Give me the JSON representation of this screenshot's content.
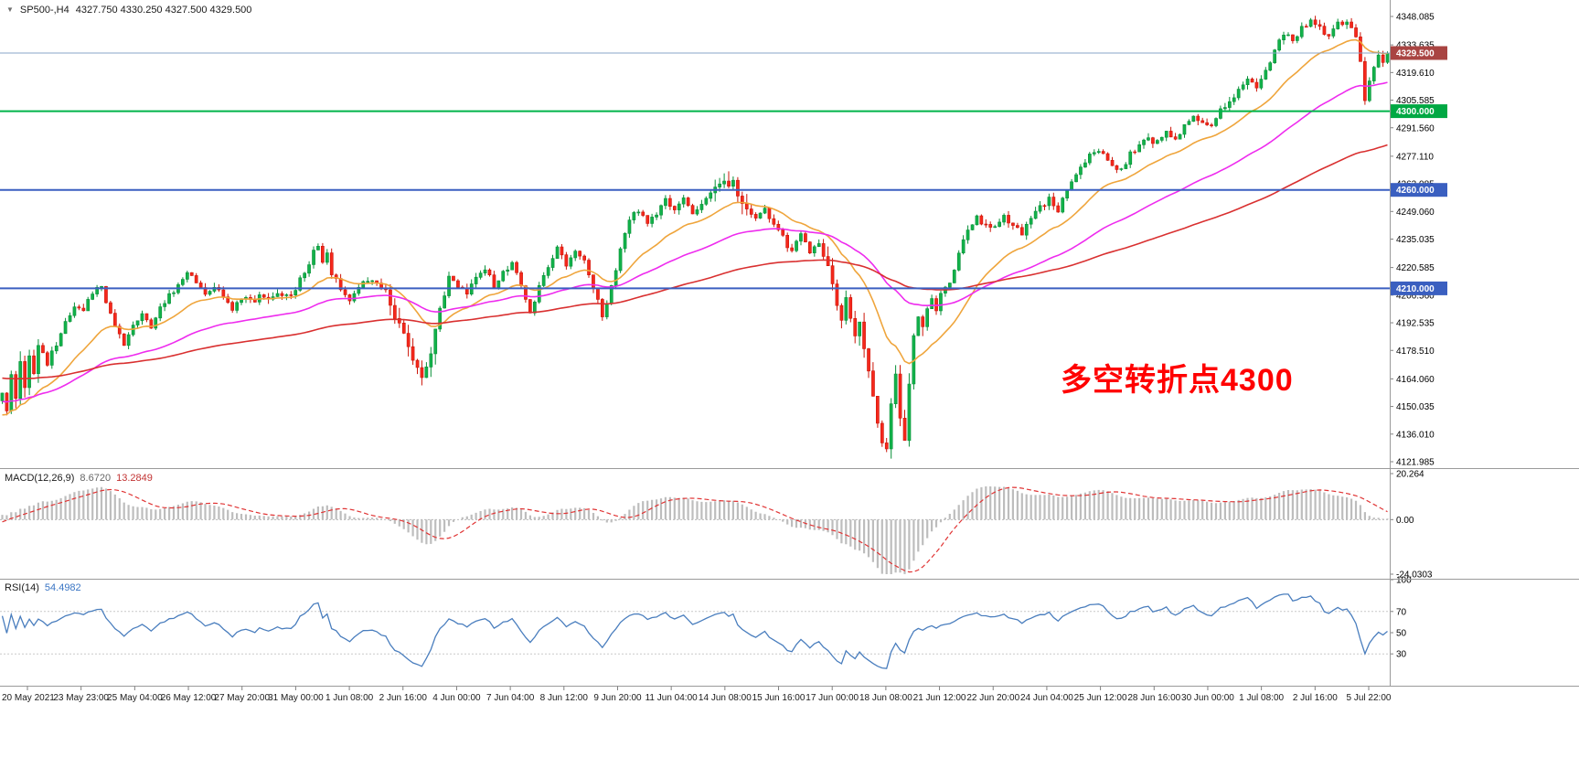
{
  "header": {
    "symbol_label": "SP500-,H4",
    "ohlc_text": "4327.750 4330.250 4327.500 4329.500"
  },
  "icons": {
    "symbol_dropdown": "▼"
  },
  "macd_panel": {
    "label": "MACD(12,26,9)",
    "value_main": "8.6720",
    "value_signal": "13.2849"
  },
  "rsi_panel": {
    "label": "RSI(14)",
    "value": "54.4982"
  },
  "annotation": {
    "text": "多空转折点4300",
    "color": "#FF0000"
  },
  "colors": {
    "background": "#FFFFFF",
    "bull_fill": "#12B24A",
    "bull_stroke": "#089038",
    "bear_fill": "#F5281C",
    "bear_stroke": "#CC1408",
    "macd_histogram": "#BDBDBD",
    "macd_signal": "#E03434",
    "rsi_line": "#4A7EBE",
    "panel_border": "#9A9A9A",
    "axis_text": "#000000"
  },
  "chart_data": {
    "type": "candlestick",
    "symbol": "SP500-",
    "timeframe": "H4",
    "bars": 308,
    "current_ohlc": {
      "open": 4327.75,
      "high": 4330.25,
      "low": 4327.5,
      "close": 4329.5
    },
    "price_axis": {
      "top_price": 4348.085,
      "bottom_price": 4121.985,
      "tick_labels": [
        "4348.085",
        "4333.635",
        "4319.610",
        "4305.585",
        "4291.560",
        "4277.110",
        "4263.085",
        "4249.060",
        "4235.035",
        "4220.585",
        "4206.560",
        "4192.535",
        "4178.510",
        "4164.060",
        "4150.035",
        "4136.010",
        "4121.985"
      ]
    },
    "time_labels": [
      "20 May 2021",
      "23 May 23:00",
      "25 May 04:00",
      "26 May 12:00",
      "27 May 20:00",
      "31 May 00:00",
      "1 Jun 08:00",
      "2 Jun 16:00",
      "4 Jun 00:00",
      "7 Jun 04:00",
      "8 Jun 12:00",
      "9 Jun 20:00",
      "11 Jun 04:00",
      "14 Jun 08:00",
      "15 Jun 16:00",
      "17 Jun 00:00",
      "18 Jun 08:00",
      "21 Jun 12:00",
      "22 Jun 20:00",
      "24 Jun 04:00",
      "25 Jun 12:00",
      "28 Jun 16:00",
      "30 Jun 00:00",
      "1 Jul 08:00",
      "2 Jul 16:00",
      "5 Jul 22:00"
    ],
    "close_waypoints": [
      [
        0,
        4158
      ],
      [
        1,
        4149
      ],
      [
        2,
        4165
      ],
      [
        3,
        4154
      ],
      [
        4,
        4172
      ],
      [
        5,
        4160
      ],
      [
        6,
        4175
      ],
      [
        7,
        4168
      ],
      [
        8,
        4180
      ],
      [
        10,
        4172
      ],
      [
        12,
        4182
      ],
      [
        14,
        4192
      ],
      [
        16,
        4200
      ],
      [
        18,
        4198
      ],
      [
        20,
        4208
      ],
      [
        22,
        4212
      ],
      [
        23,
        4204
      ],
      [
        25,
        4190
      ],
      [
        27,
        4182
      ],
      [
        29,
        4192
      ],
      [
        31,
        4198
      ],
      [
        33,
        4190
      ],
      [
        35,
        4200
      ],
      [
        37,
        4206
      ],
      [
        39,
        4212
      ],
      [
        41,
        4218
      ],
      [
        43,
        4214
      ],
      [
        45,
        4208
      ],
      [
        47,
        4212
      ],
      [
        49,
        4206
      ],
      [
        51,
        4198
      ],
      [
        53,
        4206
      ],
      [
        55,
        4203
      ],
      [
        57,
        4206
      ],
      [
        59,
        4204
      ],
      [
        61,
        4208
      ],
      [
        63,
        4206
      ],
      [
        65,
        4210
      ],
      [
        67,
        4218
      ],
      [
        69,
        4228
      ],
      [
        70,
        4231
      ],
      [
        71,
        4222
      ],
      [
        72,
        4228
      ],
      [
        73,
        4218
      ],
      [
        75,
        4210
      ],
      [
        77,
        4205
      ],
      [
        79,
        4212
      ],
      [
        81,
        4215
      ],
      [
        83,
        4212
      ],
      [
        85,
        4208
      ],
      [
        87,
        4196
      ],
      [
        89,
        4186
      ],
      [
        91,
        4172
      ],
      [
        93,
        4165
      ],
      [
        95,
        4178
      ],
      [
        97,
        4200
      ],
      [
        99,
        4215
      ],
      [
        101,
        4212
      ],
      [
        103,
        4208
      ],
      [
        105,
        4215
      ],
      [
        107,
        4220
      ],
      [
        109,
        4212
      ],
      [
        111,
        4218
      ],
      [
        113,
        4223
      ],
      [
        115,
        4210
      ],
      [
        117,
        4198
      ],
      [
        119,
        4210
      ],
      [
        121,
        4222
      ],
      [
        123,
        4230
      ],
      [
        125,
        4222
      ],
      [
        127,
        4228
      ],
      [
        129,
        4224
      ],
      [
        131,
        4210
      ],
      [
        133,
        4197
      ],
      [
        135,
        4210
      ],
      [
        137,
        4230
      ],
      [
        139,
        4245
      ],
      [
        141,
        4250
      ],
      [
        143,
        4242
      ],
      [
        145,
        4248
      ],
      [
        147,
        4255
      ],
      [
        149,
        4250
      ],
      [
        151,
        4255
      ],
      [
        153,
        4248
      ],
      [
        155,
        4252
      ],
      [
        157,
        4258
      ],
      [
        159,
        4264
      ],
      [
        161,
        4262
      ],
      [
        162,
        4266
      ],
      [
        163,
        4258
      ],
      [
        165,
        4250
      ],
      [
        167,
        4245
      ],
      [
        169,
        4250
      ],
      [
        171,
        4242
      ],
      [
        173,
        4236
      ],
      [
        175,
        4228
      ],
      [
        177,
        4238
      ],
      [
        179,
        4228
      ],
      [
        181,
        4232
      ],
      [
        183,
        4222
      ],
      [
        185,
        4202
      ],
      [
        186,
        4195
      ],
      [
        187,
        4205
      ],
      [
        188,
        4196
      ],
      [
        189,
        4186
      ],
      [
        190,
        4192
      ],
      [
        191,
        4178
      ],
      [
        192,
        4168
      ],
      [
        193,
        4155
      ],
      [
        194,
        4142
      ],
      [
        195,
        4132
      ],
      [
        196,
        4128
      ],
      [
        197,
        4152
      ],
      [
        198,
        4168
      ],
      [
        199,
        4145
      ],
      [
        200,
        4132
      ],
      [
        201,
        4162
      ],
      [
        202,
        4185
      ],
      [
        203,
        4196
      ],
      [
        204,
        4190
      ],
      [
        205,
        4200
      ],
      [
        206,
        4206
      ],
      [
        207,
        4198
      ],
      [
        208,
        4208
      ],
      [
        210,
        4212
      ],
      [
        212,
        4228
      ],
      [
        214,
        4240
      ],
      [
        216,
        4246
      ],
      [
        218,
        4242
      ],
      [
        220,
        4240
      ],
      [
        222,
        4246
      ],
      [
        224,
        4242
      ],
      [
        226,
        4238
      ],
      [
        228,
        4246
      ],
      [
        230,
        4252
      ],
      [
        232,
        4255
      ],
      [
        234,
        4250
      ],
      [
        236,
        4260
      ],
      [
        238,
        4268
      ],
      [
        240,
        4275
      ],
      [
        242,
        4280
      ],
      [
        244,
        4278
      ],
      [
        246,
        4272
      ],
      [
        248,
        4270
      ],
      [
        250,
        4278
      ],
      [
        252,
        4282
      ],
      [
        254,
        4286
      ],
      [
        256,
        4284
      ],
      [
        258,
        4290
      ],
      [
        260,
        4286
      ],
      [
        262,
        4292
      ],
      [
        264,
        4296
      ],
      [
        266,
        4294
      ],
      [
        268,
        4292
      ],
      [
        270,
        4300
      ],
      [
        272,
        4306
      ],
      [
        274,
        4310
      ],
      [
        276,
        4316
      ],
      [
        278,
        4312
      ],
      [
        280,
        4320
      ],
      [
        282,
        4332
      ],
      [
        284,
        4340
      ],
      [
        286,
        4336
      ],
      [
        288,
        4342
      ],
      [
        290,
        4346
      ],
      [
        292,
        4342
      ],
      [
        294,
        4338
      ],
      [
        296,
        4344
      ],
      [
        298,
        4346
      ],
      [
        300,
        4338
      ],
      [
        301,
        4326
      ],
      [
        302,
        4306
      ],
      [
        303,
        4315
      ],
      [
        304,
        4322
      ],
      [
        305,
        4327
      ],
      [
        306,
        4324
      ],
      [
        307,
        4329.5
      ]
    ],
    "moving_averages": [
      {
        "name": "fast",
        "period": 20,
        "color": "#EFA53C"
      },
      {
        "name": "mid",
        "period": 55,
        "color": "#EE2CEE"
      },
      {
        "name": "slow",
        "period": 130,
        "color": "#D93030"
      }
    ],
    "hlines": [
      {
        "name": "current-price",
        "price": 4329.5,
        "color": "#8AA4C8",
        "width": 1,
        "tag_text": "4329.500",
        "tag_bg": "#A94442"
      },
      {
        "name": "level-4300",
        "price": 4300.0,
        "color": "#00B44A",
        "width": 2,
        "tag_text": "4300.000",
        "tag_bg": "#00A843"
      },
      {
        "name": "level-4260",
        "price": 4260.0,
        "color": "#3A5FC0",
        "width": 2,
        "tag_text": "4260.000",
        "tag_bg": "#3A5FC0"
      },
      {
        "name": "level-4210",
        "price": 4210.0,
        "color": "#3A5FC0",
        "width": 2,
        "tag_text": "4210.000",
        "tag_bg": "#3A5FC0"
      }
    ],
    "indicators": [
      {
        "type": "MACD",
        "params": [
          12,
          26,
          9
        ],
        "value_main": 8.672,
        "value_signal": 13.2849,
        "axis_labels": [
          "20.264",
          "0.00",
          "-24.0303"
        ],
        "range": [
          -24.0303,
          20.264
        ]
      },
      {
        "type": "RSI",
        "params": [
          14
        ],
        "value": 54.4982,
        "axis_labels": [
          "100",
          "70",
          "50",
          "30"
        ],
        "levels": [
          70,
          30
        ],
        "range": [
          0,
          100
        ]
      }
    ]
  }
}
